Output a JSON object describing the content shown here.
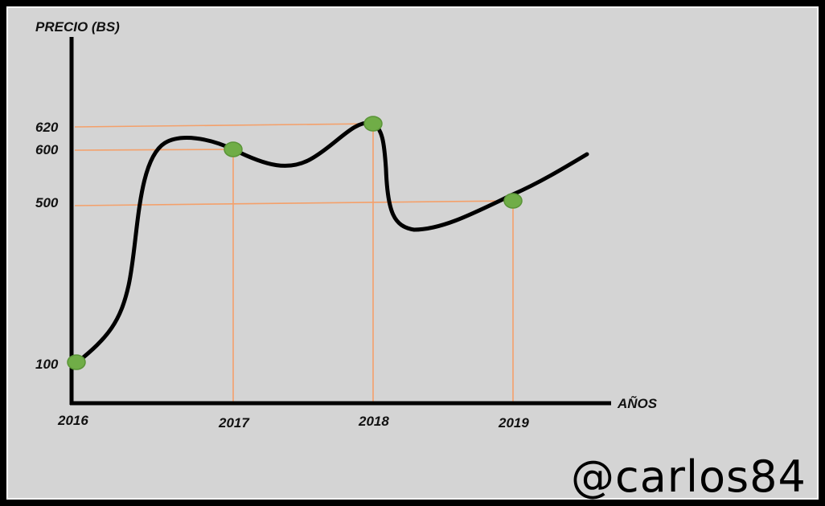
{
  "chart_data": {
    "type": "line",
    "title": "",
    "xlabel": "AÑOS",
    "ylabel": "PRECIO (BS)",
    "x_ticks": [
      "2016",
      "2017",
      "2018",
      "2019"
    ],
    "y_ticks": [
      "100",
      "500",
      "600",
      "620"
    ],
    "points": [
      {
        "x": "2016",
        "y": 100
      },
      {
        "x": "2017",
        "y": 600
      },
      {
        "x": "2018",
        "y": 620
      },
      {
        "x": "2019",
        "y": 500
      }
    ],
    "grid": false,
    "colors": {
      "line": "#000000",
      "marker_fill": "#70ad47",
      "marker_stroke": "#5a9437",
      "guide": "#f4a06a"
    }
  },
  "watermark": "@carlos84"
}
